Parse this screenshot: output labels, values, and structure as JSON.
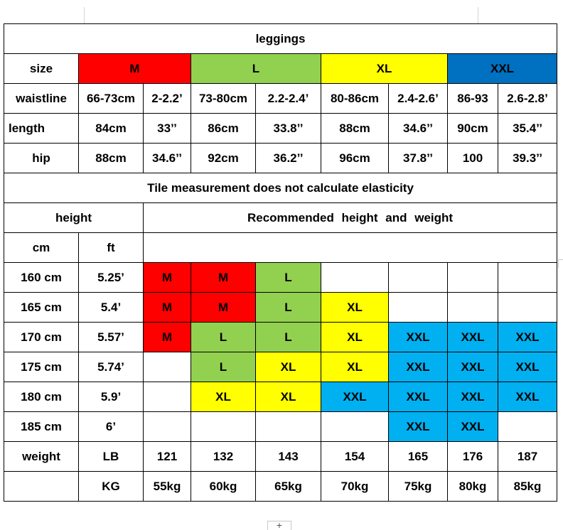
{
  "title": "leggings",
  "size_row": {
    "label": "size",
    "sizes": [
      {
        "name": "M",
        "color": "#ff0000"
      },
      {
        "name": "L",
        "color": "#92d050"
      },
      {
        "name": "XL",
        "color": "#ffff00"
      },
      {
        "name": "XXL",
        "color": "#0070c0"
      }
    ]
  },
  "measurements": [
    {
      "label": "waistline",
      "values": [
        "66-73cm",
        "2-2.2’",
        "73-80cm",
        "2.2-2.4’",
        "80-86cm",
        "2.4-2.6’",
        "86-93",
        "2.6-2.8’"
      ]
    },
    {
      "label": "length",
      "values": [
        "84cm",
        "33’’",
        "86cm",
        "33.8’’",
        "88cm",
        "34.6’’",
        "90cm",
        "35.4’’"
      ]
    },
    {
      "label": "hip",
      "values": [
        "88cm",
        "34.6’’",
        "92cm",
        "36.2’’",
        "96cm",
        "37.8’’",
        "100",
        "39.3’’"
      ]
    }
  ],
  "note": "Tile measurement does not calculate elasticity",
  "height_header": "height",
  "recommend_header": "Recommended height and weight",
  "units": {
    "cm": "cm",
    "ft": "ft"
  },
  "grid_rows": [
    {
      "cm": "160 cm",
      "ft": "5.25’",
      "cells": [
        "M",
        "M",
        "L",
        "",
        "",
        "",
        ""
      ]
    },
    {
      "cm": "165 cm",
      "ft": "5.4’",
      "cells": [
        "M",
        "M",
        "L",
        "XL",
        "",
        "",
        ""
      ]
    },
    {
      "cm": "170 cm",
      "ft": "5.57’",
      "cells": [
        "M",
        "L",
        "L",
        "XL",
        "XXL",
        "XXL",
        "XXL"
      ]
    },
    {
      "cm": "175 cm",
      "ft": "5.74’",
      "cells": [
        "",
        "L",
        "XL",
        "XL",
        "XXL",
        "XXL",
        "XXL"
      ]
    },
    {
      "cm": "180 cm",
      "ft": "5.9’",
      "cells": [
        "",
        "XL",
        "XL",
        "XXL",
        "XXL",
        "XXL",
        "XXL"
      ]
    },
    {
      "cm": "185 cm",
      "ft": "6’",
      "cells": [
        "",
        "",
        "",
        "",
        "XXL",
        "XXL",
        ""
      ]
    }
  ],
  "grid_colors": {
    "M": "#ff0000",
    "L": "#92d050",
    "XL": "#ffff00",
    "XXL": "#00b0f0"
  },
  "weight": {
    "label": "weight",
    "lb_label": "LB",
    "lb": [
      "121",
      "132",
      "143",
      "154",
      "165",
      "176",
      "187"
    ],
    "kg_label": "KG",
    "kg": [
      "55kg",
      "60kg",
      "65kg",
      "70kg",
      "75kg",
      "80kg",
      "85kg"
    ]
  },
  "sheet": {
    "add_sheet_label": "+"
  }
}
